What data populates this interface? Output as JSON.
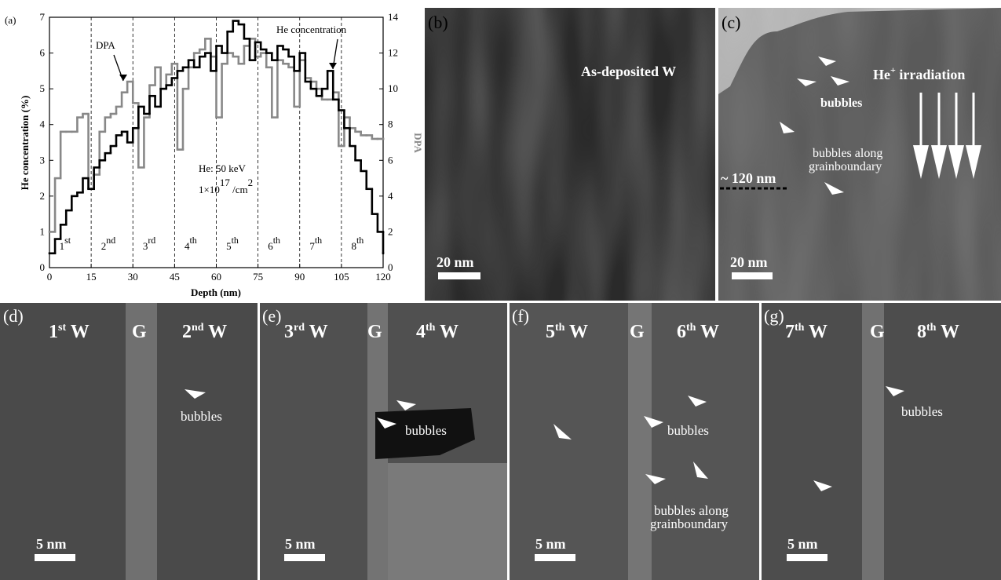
{
  "chart_data": {
    "type": "step",
    "panel_label": "(a)",
    "x_label": "Depth (nm)",
    "y_label": "He concentration (%)",
    "y2_label": "DPA",
    "x": [
      0,
      2,
      4,
      6,
      8,
      10,
      12,
      14,
      16,
      18,
      20,
      22,
      24,
      26,
      28,
      30,
      32,
      34,
      36,
      38,
      40,
      42,
      44,
      46,
      48,
      50,
      52,
      54,
      56,
      58,
      60,
      62,
      64,
      66,
      68,
      70,
      72,
      74,
      76,
      78,
      80,
      82,
      84,
      86,
      88,
      90,
      92,
      94,
      96,
      98,
      100,
      102,
      104,
      106,
      108,
      110,
      112,
      114,
      116,
      118,
      120
    ],
    "series": [
      {
        "name": "He concentration",
        "color": "#000000",
        "values": [
          0.4,
          0.8,
          1.2,
          1.6,
          2.0,
          2.1,
          2.5,
          2.2,
          2.8,
          3.0,
          3.2,
          3.4,
          3.7,
          3.8,
          3.5,
          3.9,
          4.5,
          4.3,
          4.8,
          4.5,
          5.0,
          5.1,
          5.3,
          5.5,
          5.6,
          5.8,
          5.6,
          5.9,
          6.0,
          5.5,
          6.2,
          6.0,
          6.6,
          6.9,
          6.8,
          6.4,
          5.8,
          6.3,
          6.1,
          6.0,
          5.8,
          6.2,
          6.1,
          5.9,
          5.5,
          6.0,
          5.2,
          5.0,
          4.8,
          5.0,
          5.5,
          4.7,
          4.4,
          3.9,
          3.4,
          3.0,
          2.7,
          2.2,
          1.5,
          1.0,
          0.4
        ]
      },
      {
        "name": "DPA",
        "color": "#888888",
        "axis": "y2",
        "values": [
          2,
          5,
          7.6,
          7.6,
          7.6,
          8.4,
          8.6,
          4.4,
          5.2,
          7.6,
          8.4,
          8.6,
          9.0,
          9.8,
          10.4,
          9.2,
          5.6,
          8.4,
          10.2,
          11.2,
          10.0,
          10.8,
          11.4,
          6.6,
          10.0,
          11.2,
          12.0,
          12.2,
          12.8,
          11.8,
          8.4,
          11.4,
          12.0,
          11.8,
          11.4,
          12.4,
          12.8,
          11.8,
          12.0,
          11.2,
          8.4,
          11.6,
          11.4,
          11.2,
          9.0,
          11.6,
          10.6,
          10.4,
          10.0,
          9.4,
          9.4,
          9.8,
          6.8,
          8.4,
          7.8,
          7.6,
          7.4,
          7.4,
          7.2,
          7.2,
          7.2
        ]
      }
    ],
    "xlim": [
      0,
      120
    ],
    "xticks": [
      0,
      15,
      30,
      45,
      60,
      75,
      90,
      105,
      120
    ],
    "ylim": [
      0,
      7
    ],
    "yticks": [
      0,
      1,
      2,
      3,
      4,
      5,
      6,
      7
    ],
    "y2lim": [
      0,
      14
    ],
    "y2ticks": [
      0,
      2,
      4,
      6,
      8,
      10,
      12,
      14
    ],
    "layers": [
      [
        "1",
        "st"
      ],
      [
        "2",
        "nd"
      ],
      [
        "3",
        "rd"
      ],
      [
        "4",
        "th"
      ],
      [
        "5",
        "th"
      ],
      [
        "6",
        "th"
      ],
      [
        "7",
        "th"
      ],
      [
        "8",
        "th"
      ]
    ],
    "energy": "He: 50 keV",
    "dose": [
      "1×10",
      "17",
      " /cm",
      "2"
    ]
  },
  "panels": [
    {
      "label": "(b)",
      "caption": "As-deposited W",
      "scale": "20 nm"
    },
    {
      "label": "(c)",
      "irradiation": [
        "He",
        "+",
        " irradiation"
      ],
      "bubbles": "bubbles",
      "bubbles_gb": [
        "bubbles along",
        "grainboundary"
      ],
      "depth": "~ 120 nm",
      "scale": "20 nm"
    },
    {
      "label": "(d)",
      "left": [
        "1",
        "st",
        " W"
      ],
      "g": "G",
      "right": [
        "2",
        "nd",
        " W"
      ],
      "bubbles": "bubbles",
      "scale": "5 nm"
    },
    {
      "label": "(e)",
      "left": [
        "3",
        "rd",
        " W"
      ],
      "g": "G",
      "right": [
        "4",
        "th",
        " W"
      ],
      "bubbles": "bubbles",
      "scale": "5 nm"
    },
    {
      "label": "(f)",
      "left": [
        "5",
        "th",
        " W"
      ],
      "g": "G",
      "right": [
        "6",
        "th",
        " W"
      ],
      "bubbles": "bubbles",
      "bubbles_gb": [
        "bubbles along",
        "grainboundary"
      ],
      "scale": "5 nm"
    },
    {
      "label": "(g)",
      "left": [
        "7",
        "th",
        " W"
      ],
      "g": "G",
      "right": [
        "8",
        "th",
        " W"
      ],
      "bubbles": "bubbles",
      "scale": "5 nm"
    }
  ]
}
